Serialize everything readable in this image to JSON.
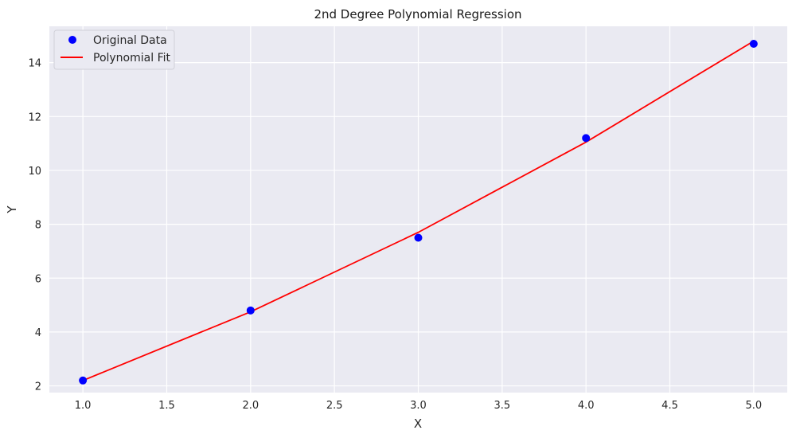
{
  "chart_data": {
    "type": "scatter",
    "title": "2nd Degree Polynomial Regression",
    "xlabel": "X",
    "ylabel": "Y",
    "xlim": [
      0.8,
      5.2
    ],
    "ylim": [
      1.75,
      15.35
    ],
    "xticks": [
      "1.0",
      "1.5",
      "2.0",
      "2.5",
      "3.0",
      "3.5",
      "4.0",
      "4.5",
      "5.0"
    ],
    "yticks": [
      "2",
      "4",
      "6",
      "8",
      "10",
      "12",
      "14"
    ],
    "grid": true,
    "legend_position": "top-left",
    "series": [
      {
        "name": "Original Data",
        "kind": "scatter",
        "color": "#0000ff",
        "x": [
          1,
          2,
          3,
          4,
          5
        ],
        "y": [
          2.2,
          4.8,
          7.5,
          11.2,
          14.7
        ]
      },
      {
        "name": "Polynomial Fit",
        "kind": "line",
        "color": "#ff0000",
        "x": [
          1,
          2,
          3,
          4,
          5
        ],
        "y": [
          2.2,
          4.75,
          7.7,
          11.05,
          14.8
        ]
      }
    ],
    "colors": {
      "plot_background": "#eaeaf2",
      "grid": "#ffffff"
    }
  }
}
